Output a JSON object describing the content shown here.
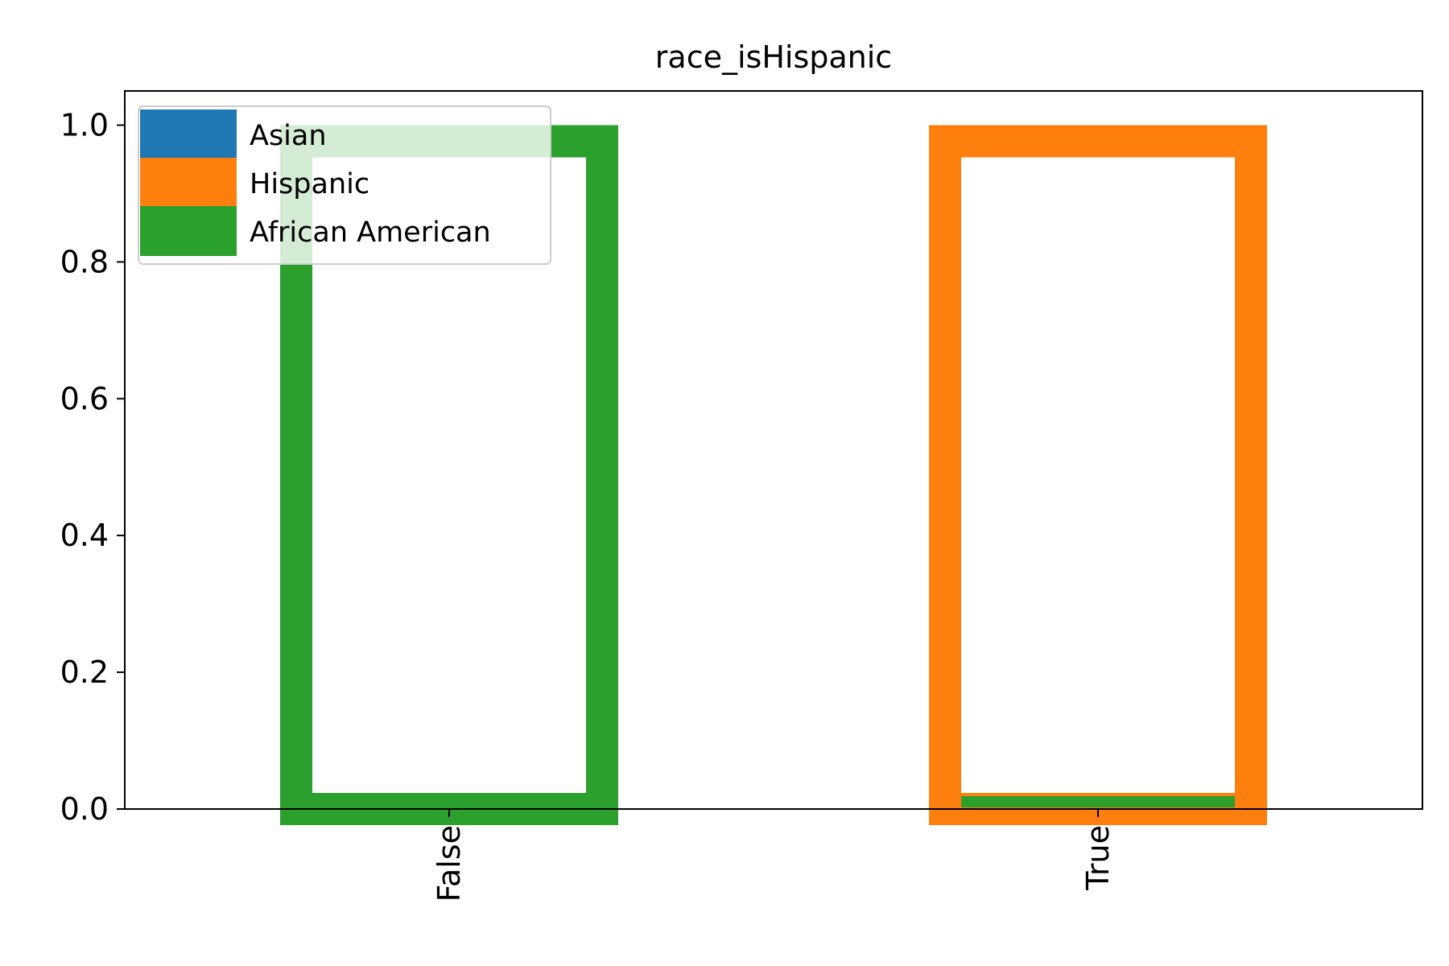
{
  "chart_data": {
    "type": "bar",
    "title": "race_isHispanic",
    "xlabel": "",
    "ylabel": "",
    "categories": [
      "False",
      "True"
    ],
    "ylim": [
      0,
      1.05
    ],
    "yticks": [
      0.0,
      0.2,
      0.4,
      0.6,
      0.8,
      1.0
    ],
    "ytick_labels": [
      "0.0",
      "0.2",
      "0.4",
      "0.6",
      "0.8",
      "1.0"
    ],
    "grid": false,
    "legend_position": "upper left",
    "series": [
      {
        "name": "Asian",
        "color": "#1f77b4",
        "values": [
          1.0,
          0.0
        ]
      },
      {
        "name": "Hispanic",
        "color": "#ff7f0e",
        "values": [
          0.0,
          1.0
        ]
      },
      {
        "name": "African American",
        "color": "#2ca02c",
        "values": [
          1.0,
          0.0
        ]
      }
    ]
  }
}
